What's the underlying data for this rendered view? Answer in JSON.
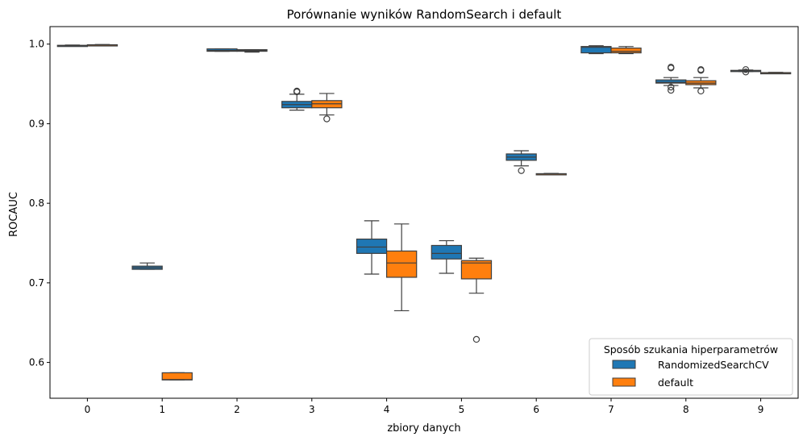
{
  "chart_data": {
    "type": "box",
    "title": "Porównanie wyników RandomSearch i default",
    "xlabel": "zbiory danych",
    "ylabel": "ROCAUC",
    "categories": [
      "0",
      "1",
      "2",
      "3",
      "4",
      "5",
      "6",
      "7",
      "8",
      "9"
    ],
    "ylim": [
      0.555,
      1.022
    ],
    "yticks": [
      0.6,
      0.7,
      0.8,
      0.9,
      1.0
    ],
    "ytick_labels": [
      "0.6",
      "0.7",
      "0.8",
      "0.9",
      "1.0"
    ],
    "grid": false,
    "legend": {
      "title": "Sposób szukania hiperparametrów",
      "position": "lower-right"
    },
    "series": [
      {
        "name": "RandomizedSearchCV",
        "color": "#1f77b4",
        "boxes": [
          {
            "category": "0",
            "whislo": 0.9975,
            "q1": 0.9978,
            "med": 0.998,
            "q3": 0.9985,
            "whishi": 0.9988,
            "fliers": []
          },
          {
            "category": "1",
            "whislo": 0.717,
            "q1": 0.717,
            "med": 0.719,
            "q3": 0.721,
            "whishi": 0.725,
            "fliers": []
          },
          {
            "category": "2",
            "whislo": 0.991,
            "q1": 0.991,
            "med": 0.992,
            "q3": 0.994,
            "whishi": 0.994,
            "fliers": []
          },
          {
            "category": "3",
            "whislo": 0.917,
            "q1": 0.92,
            "med": 0.924,
            "q3": 0.928,
            "whishi": 0.937,
            "fliers": [
              0.94,
              0.941
            ]
          },
          {
            "category": "4",
            "whislo": 0.711,
            "q1": 0.737,
            "med": 0.745,
            "q3": 0.755,
            "whishi": 0.778,
            "fliers": []
          },
          {
            "category": "5",
            "whislo": 0.712,
            "q1": 0.73,
            "med": 0.737,
            "q3": 0.747,
            "whishi": 0.753,
            "fliers": []
          },
          {
            "category": "6",
            "whislo": 0.847,
            "q1": 0.854,
            "med": 0.858,
            "q3": 0.862,
            "whishi": 0.866,
            "fliers": [
              0.841
            ]
          },
          {
            "category": "7",
            "whislo": 0.988,
            "q1": 0.989,
            "med": 0.996,
            "q3": 0.997,
            "whishi": 0.998,
            "fliers": []
          },
          {
            "category": "8",
            "whislo": 0.948,
            "q1": 0.951,
            "med": 0.952,
            "q3": 0.955,
            "whishi": 0.958,
            "fliers": [
              0.942,
              0.946,
              0.97,
              0.971
            ]
          },
          {
            "category": "9",
            "whislo": 0.9655,
            "q1": 0.966,
            "med": 0.9665,
            "q3": 0.967,
            "whishi": 0.9675,
            "fliers": [
              0.965,
              0.968
            ]
          }
        ]
      },
      {
        "name": "default",
        "color": "#ff7f0e",
        "boxes": [
          {
            "category": "0",
            "whislo": 0.9985,
            "q1": 0.9987,
            "med": 0.999,
            "q3": 0.9992,
            "whishi": 0.9995,
            "fliers": []
          },
          {
            "category": "1",
            "whislo": 0.578,
            "q1": 0.578,
            "med": 0.5785,
            "q3": 0.587,
            "whishi": 0.587,
            "fliers": []
          },
          {
            "category": "2",
            "whislo": 0.99,
            "q1": 0.991,
            "med": 0.992,
            "q3": 0.993,
            "whishi": 0.993,
            "fliers": []
          },
          {
            "category": "3",
            "whislo": 0.911,
            "q1": 0.92,
            "med": 0.925,
            "q3": 0.929,
            "whishi": 0.938,
            "fliers": [
              0.906
            ]
          },
          {
            "category": "4",
            "whislo": 0.665,
            "q1": 0.707,
            "med": 0.725,
            "q3": 0.74,
            "whishi": 0.774,
            "fliers": []
          },
          {
            "category": "5",
            "whislo": 0.687,
            "q1": 0.705,
            "med": 0.725,
            "q3": 0.728,
            "whishi": 0.731,
            "fliers": [
              0.629
            ]
          },
          {
            "category": "6",
            "whislo": 0.8365,
            "q1": 0.8368,
            "med": 0.837,
            "q3": 0.8372,
            "whishi": 0.8375,
            "fliers": []
          },
          {
            "category": "7",
            "whislo": 0.988,
            "q1": 0.989,
            "med": 0.991,
            "q3": 0.995,
            "whishi": 0.997,
            "fliers": []
          },
          {
            "category": "8",
            "whislo": 0.945,
            "q1": 0.949,
            "med": 0.951,
            "q3": 0.954,
            "whishi": 0.958,
            "fliers": [
              0.941,
              0.967,
              0.968
            ]
          },
          {
            "category": "9",
            "whislo": 0.9635,
            "q1": 0.9638,
            "med": 0.964,
            "q3": 0.9642,
            "whishi": 0.9645,
            "fliers": []
          }
        ]
      }
    ]
  }
}
